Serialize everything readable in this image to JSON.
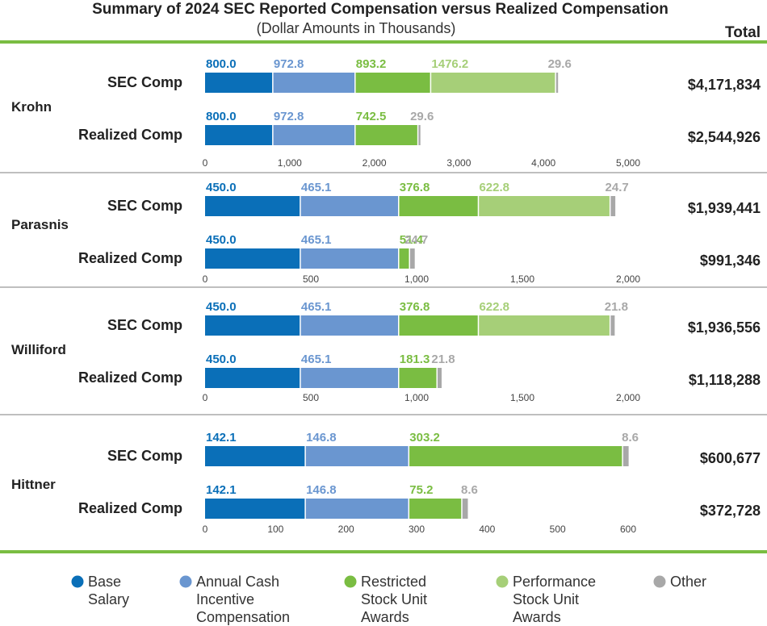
{
  "chart_data": {
    "type": "bar",
    "orientation": "horizontal-stacked",
    "title": "Summary of 2024 SEC Reported Compensation versus Realized Compensation",
    "subtitle": "(Dollar Amounts in Thousands)",
    "total_header": "Total",
    "colors": [
      "#0a6fb8",
      "#6a96d0",
      "#7abd42",
      "#a6cf78",
      "#a8a8a8"
    ],
    "legend": [
      {
        "lines": [
          "Base",
          "Salary"
        ]
      },
      {
        "lines": [
          "Annual Cash",
          "Incentive",
          "Compensation"
        ]
      },
      {
        "lines": [
          "Restricted",
          "Stock Unit",
          "Awards"
        ]
      },
      {
        "lines": [
          "Performance",
          "Stock Unit",
          "Awards"
        ]
      },
      {
        "lines": [
          "Other"
        ]
      }
    ],
    "executives": [
      {
        "name": "Krohn",
        "xlim": [
          0,
          5000
        ],
        "ticks": [
          0,
          1000,
          2000,
          3000,
          4000,
          5000
        ],
        "tick_labels": [
          "0",
          "1,000",
          "2,000",
          "3,000",
          "4,000",
          "5,000"
        ],
        "rows": [
          {
            "label": "SEC Comp",
            "values": [
              800.0,
              972.8,
              893.2,
              1476.2,
              29.6
            ],
            "labels": [
              "800.0",
              "972.8",
              "893.2",
              "1476.2",
              "29.6"
            ],
            "total": "$4,171,834"
          },
          {
            "label": "Realized Comp",
            "values": [
              800.0,
              972.8,
              742.5,
              0,
              29.6
            ],
            "labels": [
              "800.0",
              "972.8",
              "742.5",
              "",
              "29.6"
            ],
            "total": "$2,544,926"
          }
        ]
      },
      {
        "name": "Parasnis",
        "xlim": [
          0,
          2000
        ],
        "ticks": [
          0,
          500,
          1000,
          1500,
          2000
        ],
        "tick_labels": [
          "0",
          "500",
          "1,000",
          "1,500",
          "2,000"
        ],
        "rows": [
          {
            "label": "SEC Comp",
            "values": [
              450.0,
              465.1,
              376.8,
              622.8,
              24.7
            ],
            "labels": [
              "450.0",
              "465.1",
              "376.8",
              "622.8",
              "24.7"
            ],
            "total": "$1,939,441"
          },
          {
            "label": "Realized Comp",
            "values": [
              450.0,
              465.1,
              51.4,
              0,
              24.7
            ],
            "labels": [
              "450.0",
              "465.1",
              "51.4",
              "",
              "24.7"
            ],
            "total": "$991,346"
          }
        ]
      },
      {
        "name": "Williford",
        "xlim": [
          0,
          2000
        ],
        "ticks": [
          0,
          500,
          1000,
          1500,
          2000
        ],
        "tick_labels": [
          "0",
          "500",
          "1,000",
          "1,500",
          "2,000"
        ],
        "rows": [
          {
            "label": "SEC Comp",
            "values": [
              450.0,
              465.1,
              376.8,
              622.8,
              21.8
            ],
            "labels": [
              "450.0",
              "465.1",
              "376.8",
              "622.8",
              "21.8"
            ],
            "total": "$1,936,556"
          },
          {
            "label": "Realized Comp",
            "values": [
              450.0,
              465.1,
              181.3,
              0,
              21.8
            ],
            "labels": [
              "450.0",
              "465.1",
              "181.3",
              "",
              "21.8"
            ],
            "total": "$1,118,288"
          }
        ]
      },
      {
        "name": "Hittner",
        "xlim": [
          0,
          600
        ],
        "ticks": [
          0,
          100,
          200,
          300,
          400,
          500,
          600
        ],
        "tick_labels": [
          "0",
          "100",
          "200",
          "300",
          "400",
          "500",
          "600"
        ],
        "rows": [
          {
            "label": "SEC Comp",
            "values": [
              142.1,
              146.8,
              303.2,
              0,
              8.6
            ],
            "labels": [
              "142.1",
              "146.8",
              "303.2",
              "",
              "8.6"
            ],
            "total": "$600,677"
          },
          {
            "label": "Realized Comp",
            "values": [
              142.1,
              146.8,
              75.2,
              0,
              8.6
            ],
            "labels": [
              "142.1",
              "146.8",
              "75.2",
              "",
              "8.6"
            ],
            "total": "$372,728"
          }
        ]
      }
    ]
  }
}
